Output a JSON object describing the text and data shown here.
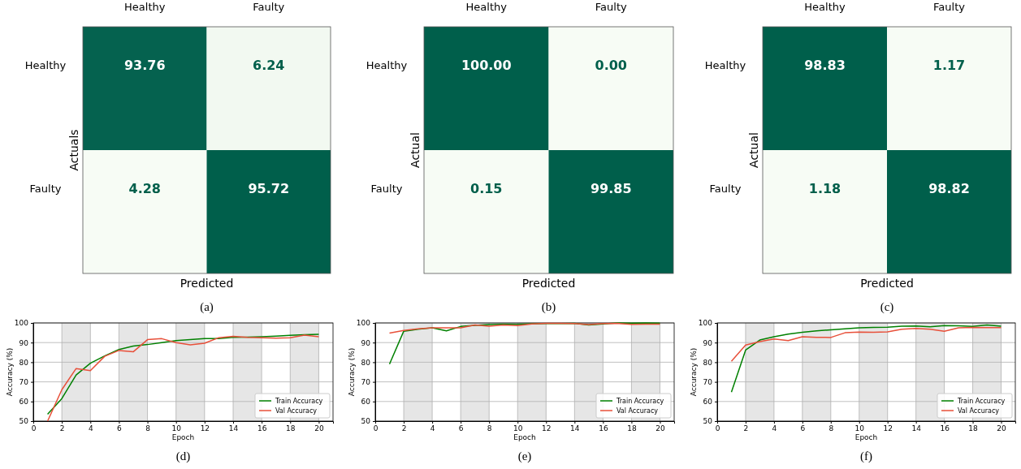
{
  "chart_data": [
    {
      "type": "heatmap",
      "categories": [
        "Healthy",
        "Faulty"
      ],
      "y_categories": [
        "Healthy",
        "Faulty"
      ],
      "cells": [
        [
          93.76,
          6.24
        ],
        [
          4.28,
          95.72
        ]
      ],
      "data_labels": true,
      "xlabel": "Predicted",
      "ylabel": "Actuals",
      "annotations": [
        "(a)"
      ]
    },
    {
      "type": "heatmap",
      "categories": [
        "Healthy",
        "Faulty"
      ],
      "y_categories": [
        "Healthy",
        "Faulty"
      ],
      "cells": [
        [
          100.0,
          0.0
        ],
        [
          0.15,
          99.85
        ]
      ],
      "cell_labels": [
        [
          "100.00",
          "0.00"
        ],
        [
          "0.15",
          "99.85"
        ]
      ],
      "data_labels": true,
      "xlabel": "Predicted",
      "ylabel": "Actual",
      "annotations": [
        "(b)"
      ]
    },
    {
      "type": "heatmap",
      "categories": [
        "Healthy",
        "Faulty"
      ],
      "y_categories": [
        "Healthy",
        "Faulty"
      ],
      "cells": [
        [
          98.83,
          1.17
        ],
        [
          1.18,
          98.82
        ]
      ],
      "data_labels": true,
      "xlabel": "Predicted",
      "ylabel": "Actual",
      "annotations": [
        "(c)"
      ]
    },
    {
      "type": "line",
      "x": [
        1,
        2,
        3,
        4,
        5,
        6,
        7,
        8,
        9,
        10,
        11,
        12,
        13,
        14,
        15,
        16,
        17,
        18,
        19,
        20
      ],
      "xlabel": "Epoch",
      "ylabel": "Accuracy (%)",
      "xlim": [
        0,
        21
      ],
      "ylim": [
        50,
        100
      ],
      "xticks": [
        0,
        2,
        4,
        6,
        8,
        10,
        12,
        14,
        16,
        18,
        20
      ],
      "yticks": [
        50,
        60,
        70,
        80,
        90,
        100
      ],
      "grid": true,
      "legend": "bottom right",
      "annotations": [
        "(d)"
      ],
      "bands": [
        {
          "axis": "x",
          "from": 2,
          "to": 4,
          "color": "#e6e6e6"
        },
        {
          "axis": "x",
          "from": 6,
          "to": 8,
          "color": "#e6e6e6"
        },
        {
          "axis": "x",
          "from": 10,
          "to": 12,
          "color": "#e6e6e6"
        },
        {
          "axis": "x",
          "from": 14,
          "to": 16,
          "color": "#e6e6e6"
        },
        {
          "axis": "x",
          "from": 18,
          "to": 20,
          "color": "#e6e6e6"
        }
      ],
      "series": [
        {
          "name": "Train Accuracy",
          "color": "#008000",
          "values": [
            53.5,
            61.5,
            73.5,
            79.5,
            83.2,
            86.5,
            88.2,
            89,
            90,
            91,
            91.5,
            92,
            92,
            92.7,
            92.8,
            93,
            93.3,
            93.7,
            94,
            94.2
          ]
        },
        {
          "name": "Val Accuracy",
          "color": "#e8503a",
          "values": [
            50,
            66,
            76.8,
            75.7,
            83,
            86,
            85.3,
            91.5,
            92,
            90,
            88.8,
            89.7,
            92.5,
            93.2,
            92.7,
            92.5,
            92.3,
            92.5,
            93.8,
            93
          ]
        }
      ]
    },
    {
      "type": "line",
      "x": [
        1,
        2,
        3,
        4,
        5,
        6,
        7,
        8,
        9,
        10,
        11,
        12,
        13,
        14,
        15,
        16,
        17,
        18,
        19,
        20
      ],
      "xlabel": "Epoch",
      "ylabel": "Accuracy (%)",
      "xlim": [
        0,
        21
      ],
      "ylim": [
        50,
        100
      ],
      "xticks": [
        0,
        2,
        4,
        6,
        8,
        10,
        12,
        14,
        16,
        18,
        20
      ],
      "yticks": [
        50,
        60,
        70,
        80,
        90,
        100
      ],
      "grid": true,
      "legend": "bottom right",
      "annotations": [
        "(e)"
      ],
      "bands": [
        {
          "axis": "x",
          "from": 2,
          "to": 4,
          "color": "#e6e6e6"
        },
        {
          "axis": "x",
          "from": 6,
          "to": 8,
          "color": "#e6e6e6"
        },
        {
          "axis": "x",
          "from": 10,
          "to": 12,
          "color": "#e6e6e6"
        },
        {
          "axis": "x",
          "from": 14,
          "to": 16,
          "color": "#e6e6e6"
        },
        {
          "axis": "x",
          "from": 18,
          "to": 20,
          "color": "#e6e6e6"
        }
      ],
      "series": [
        {
          "name": "Train Accuracy",
          "color": "#008000",
          "values": [
            79,
            95.8,
            96.8,
            97.5,
            96,
            98.2,
            98.8,
            99.2,
            99.4,
            99.3,
            99.6,
            99.7,
            99.7,
            99.8,
            99,
            99.5,
            100,
            99.9,
            100,
            99.9
          ]
        },
        {
          "name": "Val Accuracy",
          "color": "#e8503a",
          "values": [
            94.8,
            96.2,
            97,
            97.5,
            97.5,
            97.5,
            99,
            98.3,
            99,
            98.7,
            99.5,
            99.8,
            99.8,
            99.7,
            99.2,
            99.7,
            99.8,
            99.3,
            99.4,
            99.4
          ]
        }
      ]
    },
    {
      "type": "line",
      "x": [
        1,
        2,
        3,
        4,
        5,
        6,
        7,
        8,
        9,
        10,
        11,
        12,
        13,
        14,
        15,
        16,
        17,
        18,
        19,
        20
      ],
      "xlabel": "Epoch",
      "ylabel": "Accuracy (%)",
      "xlim": [
        0,
        21
      ],
      "ylim": [
        50,
        100
      ],
      "xticks": [
        0,
        2,
        4,
        6,
        8,
        10,
        12,
        14,
        16,
        18,
        20
      ],
      "yticks": [
        50,
        60,
        70,
        80,
        90,
        100
      ],
      "grid": true,
      "legend": "bottom right",
      "annotations": [
        "(f)"
      ],
      "bands": [
        {
          "axis": "x",
          "from": 2,
          "to": 4,
          "color": "#e6e6e6"
        },
        {
          "axis": "x",
          "from": 6,
          "to": 8,
          "color": "#e6e6e6"
        },
        {
          "axis": "x",
          "from": 10,
          "to": 12,
          "color": "#e6e6e6"
        },
        {
          "axis": "x",
          "from": 14,
          "to": 16,
          "color": "#e6e6e6"
        },
        {
          "axis": "x",
          "from": 18,
          "to": 20,
          "color": "#e6e6e6"
        }
      ],
      "series": [
        {
          "name": "Train Accuracy",
          "color": "#008000",
          "values": [
            64.8,
            86.2,
            91.3,
            93,
            94.3,
            95.2,
            96,
            96.5,
            97,
            97.5,
            97.7,
            97.8,
            98.3,
            98.5,
            98,
            98.7,
            98.6,
            98.2,
            99,
            98.3
          ]
        },
        {
          "name": "Val Accuracy",
          "color": "#e8503a",
          "values": [
            80.5,
            88.7,
            90.5,
            91.8,
            91,
            93,
            92.7,
            92.6,
            95,
            95.4,
            95.2,
            95.5,
            96.8,
            97.2,
            96.8,
            95.8,
            97.5,
            97.7,
            97.6,
            97.6
          ]
        }
      ]
    }
  ]
}
